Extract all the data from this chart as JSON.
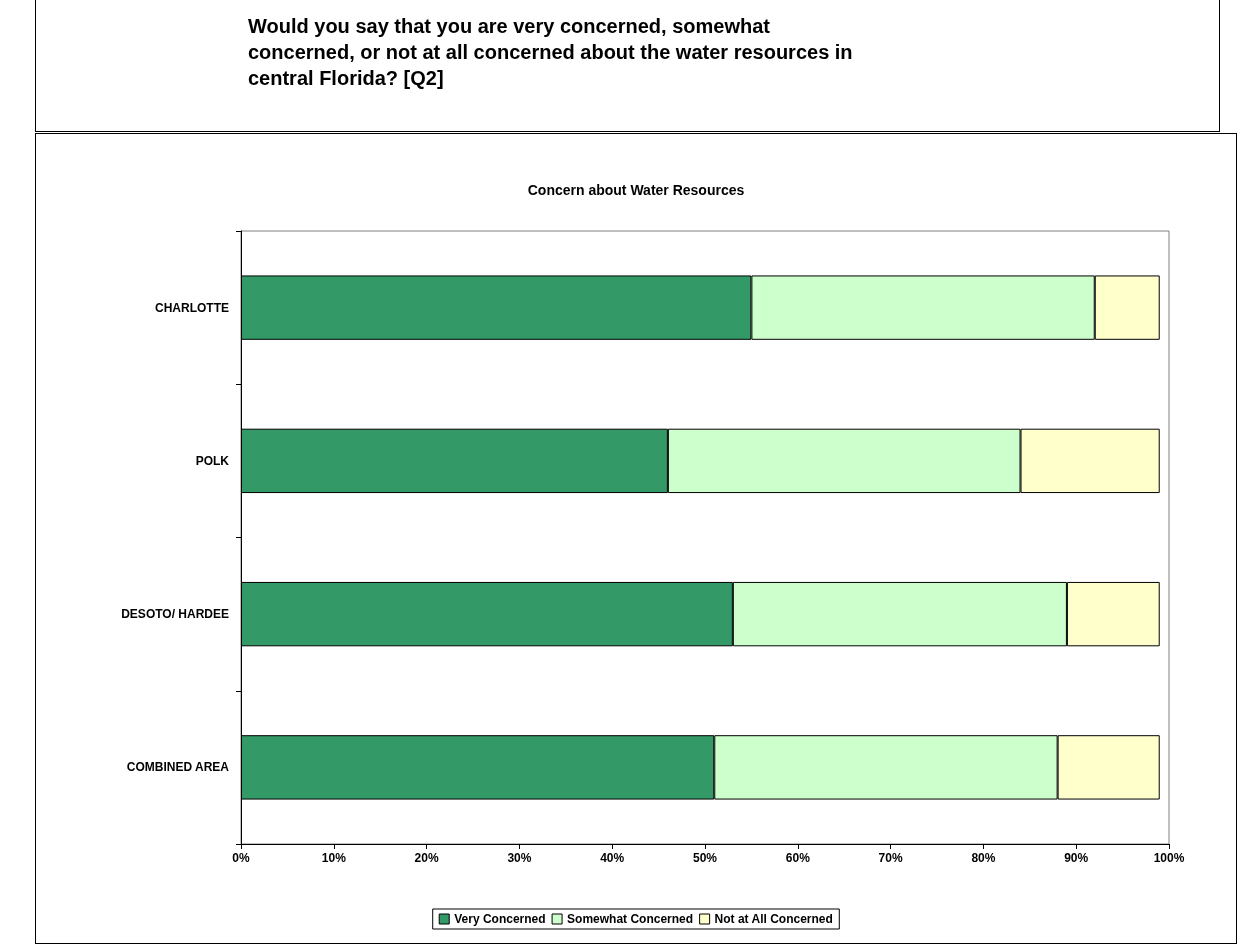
{
  "chart_data": {
    "type": "bar",
    "orientation": "horizontal",
    "stacked": true,
    "title": "Would you say that you are very concerned, somewhat concerned, or not at all concerned about the water resources in central Florida? [Q2]",
    "subtitle": "Concern about Water Resources",
    "categories": [
      "CHARLOTTE",
      "POLK",
      "DESOTO/ HARDEE",
      "COMBINED AREA"
    ],
    "series": [
      {
        "name": "Very Concerned",
        "color": "#339966",
        "values": [
          55,
          46,
          53,
          51
        ]
      },
      {
        "name": "Somewhat Concerned",
        "color": "#ccffcc",
        "values": [
          37,
          38,
          36,
          37
        ]
      },
      {
        "name": "Not at All Concerned",
        "color": "#ffffcc",
        "values": [
          7,
          15,
          10,
          11
        ]
      }
    ],
    "xlim": [
      0,
      100
    ],
    "xticks": [
      {
        "value": 0,
        "label": "0%"
      },
      {
        "value": 10,
        "label": "10%"
      },
      {
        "value": 20,
        "label": "20%"
      },
      {
        "value": 30,
        "label": "30%"
      },
      {
        "value": 40,
        "label": "40%"
      },
      {
        "value": 50,
        "label": "50%"
      },
      {
        "value": 60,
        "label": "60%"
      },
      {
        "value": 70,
        "label": "70%"
      },
      {
        "value": 80,
        "label": "80%"
      },
      {
        "value": 90,
        "label": "90%"
      },
      {
        "value": 100,
        "label": "100%"
      }
    ],
    "grid": false,
    "legend": "bottom"
  }
}
